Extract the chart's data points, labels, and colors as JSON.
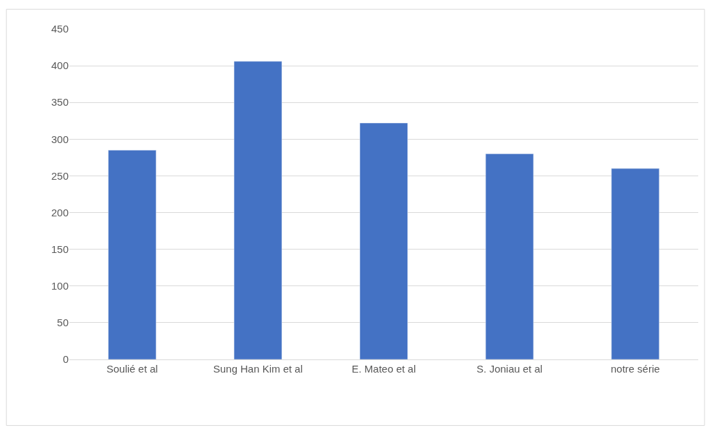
{
  "chart_data": {
    "type": "bar",
    "categories": [
      "Soulié et al",
      "Sung Han Kim et al",
      "E. Mateo et al",
      "S. Joniau et al",
      "notre série"
    ],
    "values": [
      285,
      406,
      322,
      280,
      260
    ],
    "color": "#4472c4",
    "ylim": [
      0,
      450
    ],
    "yticks": [
      0,
      50,
      100,
      150,
      200,
      250,
      300,
      350,
      400,
      450
    ],
    "grid": "y"
  }
}
